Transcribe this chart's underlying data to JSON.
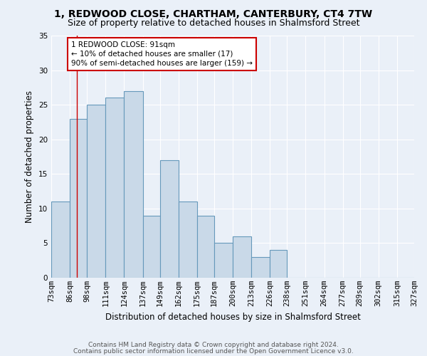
{
  "title": "1, REDWOOD CLOSE, CHARTHAM, CANTERBURY, CT4 7TW",
  "subtitle": "Size of property relative to detached houses in Shalmsford Street",
  "xlabel": "Distribution of detached houses by size in Shalmsford Street",
  "ylabel": "Number of detached properties",
  "bins": [
    73,
    86,
    98,
    111,
    124,
    137,
    149,
    162,
    175,
    187,
    200,
    213,
    226,
    238,
    251,
    264,
    277,
    289,
    302,
    315,
    327
  ],
  "bin_labels": [
    "73sqm",
    "86sqm",
    "98sqm",
    "111sqm",
    "124sqm",
    "137sqm",
    "149sqm",
    "162sqm",
    "175sqm",
    "187sqm",
    "200sqm",
    "213sqm",
    "226sqm",
    "238sqm",
    "251sqm",
    "264sqm",
    "277sqm",
    "289sqm",
    "302sqm",
    "315sqm",
    "327sqm"
  ],
  "counts": [
    11,
    23,
    25,
    26,
    27,
    9,
    17,
    11,
    9,
    5,
    6,
    3,
    4,
    0,
    0,
    0,
    0,
    0,
    0,
    0
  ],
  "bar_color": "#c9d9e8",
  "bar_edge_color": "#6699bb",
  "ylim": [
    0,
    35
  ],
  "yticks": [
    0,
    5,
    10,
    15,
    20,
    25,
    30,
    35
  ],
  "property_line_x": 91,
  "annotation_text": "1 REDWOOD CLOSE: 91sqm\n← 10% of detached houses are smaller (17)\n90% of semi-detached houses are larger (159) →",
  "annotation_box_color": "#ffffff",
  "annotation_box_edge": "#cc0000",
  "property_line_color": "#cc0000",
  "footer_line1": "Contains HM Land Registry data © Crown copyright and database right 2024.",
  "footer_line2": "Contains public sector information licensed under the Open Government Licence v3.0.",
  "bg_color": "#eaf0f8",
  "plot_bg_color": "#eaf0f8",
  "grid_color": "#ffffff",
  "title_fontsize": 10,
  "subtitle_fontsize": 9,
  "ylabel_fontsize": 8.5,
  "xlabel_fontsize": 8.5,
  "tick_fontsize": 7.5,
  "annotation_fontsize": 7.5,
  "footer_fontsize": 6.5
}
